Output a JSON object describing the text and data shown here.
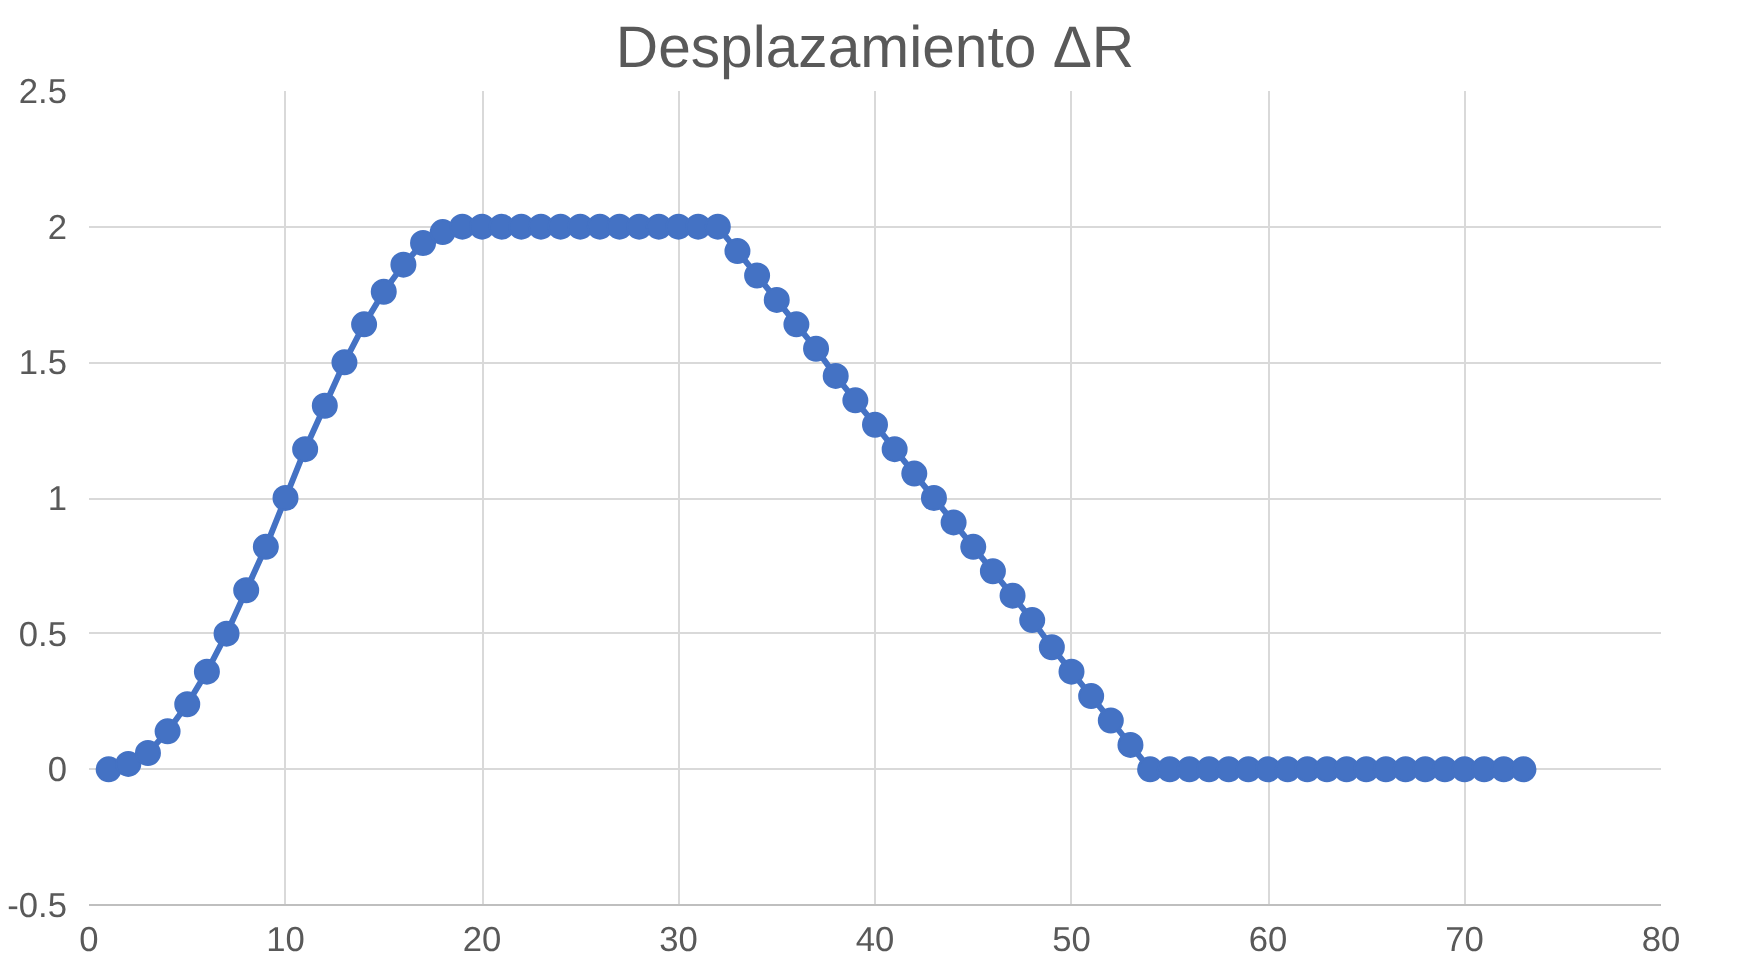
{
  "chart_data": {
    "type": "line",
    "title": "Desplazamiento ΔR",
    "x": [
      1,
      2,
      3,
      4,
      5,
      6,
      7,
      8,
      9,
      10,
      11,
      12,
      13,
      14,
      15,
      16,
      17,
      18,
      19,
      20,
      21,
      22,
      23,
      24,
      25,
      26,
      27,
      28,
      29,
      30,
      31,
      32,
      33,
      34,
      35,
      36,
      37,
      38,
      39,
      40,
      41,
      42,
      43,
      44,
      45,
      46,
      47,
      48,
      49,
      50,
      51,
      52,
      53,
      54,
      55,
      56,
      57,
      58,
      59,
      60,
      61,
      62,
      63,
      64,
      65,
      66,
      67,
      68,
      69,
      70,
      71,
      72,
      73
    ],
    "series": [
      {
        "color": "#4472c4",
        "values": [
          0,
          0.02,
          0.06,
          0.14,
          0.24,
          0.36,
          0.5,
          0.66,
          0.82,
          1.0,
          1.18,
          1.34,
          1.5,
          1.64,
          1.76,
          1.86,
          1.94,
          1.98,
          2,
          2,
          2,
          2,
          2,
          2,
          2,
          2,
          2,
          2,
          2,
          2,
          2,
          2,
          1.91,
          1.82,
          1.73,
          1.64,
          1.55,
          1.45,
          1.36,
          1.27,
          1.18,
          1.09,
          1.0,
          0.91,
          0.82,
          0.73,
          0.64,
          0.55,
          0.45,
          0.36,
          0.27,
          0.18,
          0.09,
          0,
          0,
          0,
          0,
          0,
          0,
          0,
          0,
          0,
          0,
          0,
          0,
          0,
          0,
          0,
          0,
          0,
          0,
          0,
          0
        ]
      }
    ],
    "xlim": [
      0,
      80
    ],
    "xticks": [
      0,
      10,
      20,
      30,
      40,
      50,
      60,
      70,
      80
    ],
    "ylim": [
      -0.5,
      2.5
    ],
    "yticks": [
      -0.5,
      0,
      0.5,
      1,
      1.5,
      2,
      2.5
    ],
    "grid": true,
    "marker": "circle",
    "line_style": "solid"
  }
}
